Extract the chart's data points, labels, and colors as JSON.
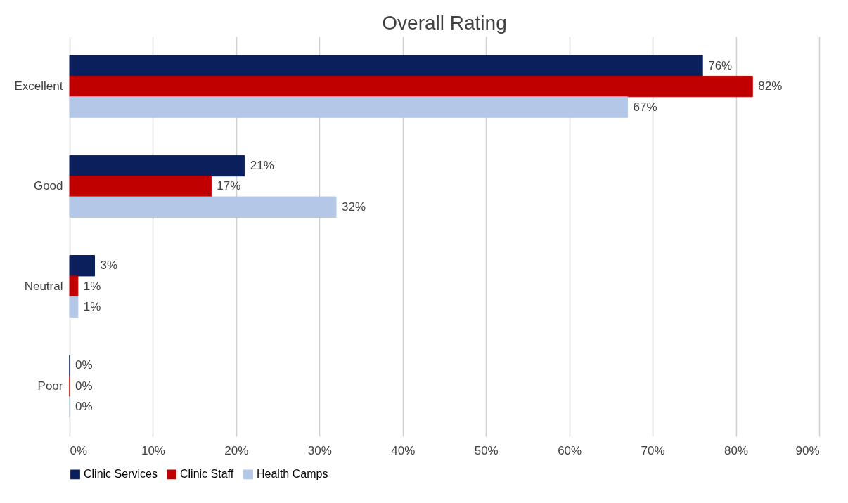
{
  "chart_data": {
    "type": "bar",
    "orientation": "horizontal",
    "title": "Overall Rating",
    "categories": [
      "Excellent",
      "Good",
      "Neutral",
      "Poor"
    ],
    "series": [
      {
        "name": "Clinic Services",
        "color": "#0b1f5c",
        "values": [
          76,
          21,
          3,
          0
        ],
        "value_labels": [
          "76%",
          "21%",
          "3%",
          "0%"
        ]
      },
      {
        "name": "Clinic Staff",
        "color": "#c00000",
        "values": [
          82,
          17,
          1,
          0
        ],
        "value_labels": [
          "82%",
          "17%",
          "1%",
          "0%"
        ]
      },
      {
        "name": "Health Camps",
        "color": "#b4c7e7",
        "values": [
          67,
          32,
          1,
          0
        ],
        "value_labels": [
          "67%",
          "32%",
          "1%",
          "0%"
        ]
      }
    ],
    "xlim": [
      0,
      90
    ],
    "xticks": [
      {
        "value": 0,
        "label": "0%"
      },
      {
        "value": 10,
        "label": "10%"
      },
      {
        "value": 20,
        "label": "20%"
      },
      {
        "value": 30,
        "label": "30%"
      },
      {
        "value": 40,
        "label": "40%"
      },
      {
        "value": 50,
        "label": "50%"
      },
      {
        "value": 60,
        "label": "60%"
      },
      {
        "value": 70,
        "label": "70%"
      },
      {
        "value": 80,
        "label": "80%"
      },
      {
        "value": 90,
        "label": "90%"
      }
    ],
    "grid": "x",
    "legend": "bottom"
  }
}
